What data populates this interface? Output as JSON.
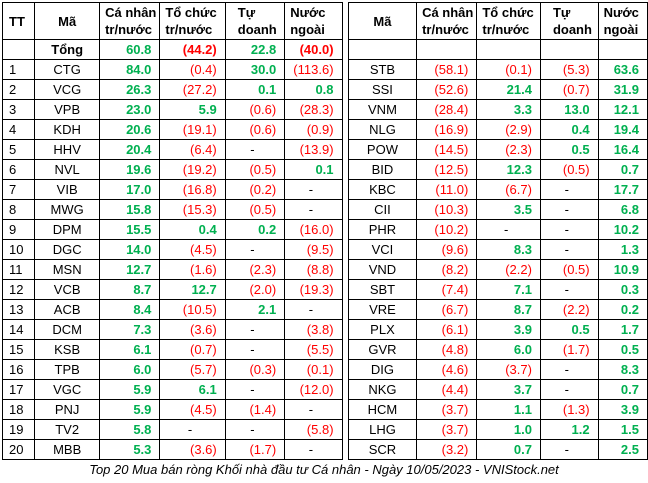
{
  "headers": {
    "tt": "TT",
    "ma": "Mã",
    "ca_nhan": [
      "Cá nhân",
      "tr/nước"
    ],
    "to_chuc": [
      "Tổ chức",
      "tr/nước"
    ],
    "tu_doanh": [
      "Tự",
      "doanh"
    ],
    "nuoc_ngoai": [
      "Nước",
      "ngoài"
    ]
  },
  "total": {
    "label": "Tổng",
    "ca_nhan": "60.8",
    "to_chuc": "(44.2)",
    "tu_doanh": "22.8",
    "nuoc_ngoai": "(40.0)"
  },
  "left_rows": [
    {
      "tt": "1",
      "ma": "CTG",
      "ca_nhan": "84.0",
      "to_chuc": "(0.4)",
      "tu_doanh": "30.0",
      "nuoc_ngoai": "(113.6)"
    },
    {
      "tt": "2",
      "ma": "VCG",
      "ca_nhan": "26.3",
      "to_chuc": "(27.2)",
      "tu_doanh": "0.1",
      "nuoc_ngoai": "0.8"
    },
    {
      "tt": "3",
      "ma": "VPB",
      "ca_nhan": "23.0",
      "to_chuc": "5.9",
      "tu_doanh": "(0.6)",
      "nuoc_ngoai": "(28.3)"
    },
    {
      "tt": "4",
      "ma": "KDH",
      "ca_nhan": "20.6",
      "to_chuc": "(19.1)",
      "tu_doanh": "(0.6)",
      "nuoc_ngoai": "(0.9)"
    },
    {
      "tt": "5",
      "ma": "HHV",
      "ca_nhan": "20.4",
      "to_chuc": "(6.4)",
      "tu_doanh": "-",
      "nuoc_ngoai": "(13.9)"
    },
    {
      "tt": "6",
      "ma": "NVL",
      "ca_nhan": "19.6",
      "to_chuc": "(19.2)",
      "tu_doanh": "(0.5)",
      "nuoc_ngoai": "0.1"
    },
    {
      "tt": "7",
      "ma": "VIB",
      "ca_nhan": "17.0",
      "to_chuc": "(16.8)",
      "tu_doanh": "(0.2)",
      "nuoc_ngoai": "-"
    },
    {
      "tt": "8",
      "ma": "MWG",
      "ca_nhan": "15.8",
      "to_chuc": "(15.3)",
      "tu_doanh": "(0.5)",
      "nuoc_ngoai": "-"
    },
    {
      "tt": "9",
      "ma": "DPM",
      "ca_nhan": "15.5",
      "to_chuc": "0.4",
      "tu_doanh": "0.2",
      "nuoc_ngoai": "(16.0)"
    },
    {
      "tt": "10",
      "ma": "DGC",
      "ca_nhan": "14.0",
      "to_chuc": "(4.5)",
      "tu_doanh": "-",
      "nuoc_ngoai": "(9.5)"
    },
    {
      "tt": "11",
      "ma": "MSN",
      "ca_nhan": "12.7",
      "to_chuc": "(1.6)",
      "tu_doanh": "(2.3)",
      "nuoc_ngoai": "(8.8)"
    },
    {
      "tt": "12",
      "ma": "VCB",
      "ca_nhan": "8.7",
      "to_chuc": "12.7",
      "tu_doanh": "(2.0)",
      "nuoc_ngoai": "(19.3)"
    },
    {
      "tt": "13",
      "ma": "ACB",
      "ca_nhan": "8.4",
      "to_chuc": "(10.5)",
      "tu_doanh": "2.1",
      "nuoc_ngoai": "-"
    },
    {
      "tt": "14",
      "ma": "DCM",
      "ca_nhan": "7.3",
      "to_chuc": "(3.6)",
      "tu_doanh": "-",
      "nuoc_ngoai": "(3.8)"
    },
    {
      "tt": "15",
      "ma": "KSB",
      "ca_nhan": "6.1",
      "to_chuc": "(0.7)",
      "tu_doanh": "-",
      "nuoc_ngoai": "(5.5)"
    },
    {
      "tt": "16",
      "ma": "TPB",
      "ca_nhan": "6.0",
      "to_chuc": "(5.7)",
      "tu_doanh": "(0.3)",
      "nuoc_ngoai": "(0.1)"
    },
    {
      "tt": "17",
      "ma": "VGC",
      "ca_nhan": "5.9",
      "to_chuc": "6.1",
      "tu_doanh": "-",
      "nuoc_ngoai": "(12.0)"
    },
    {
      "tt": "18",
      "ma": "PNJ",
      "ca_nhan": "5.9",
      "to_chuc": "(4.5)",
      "tu_doanh": "(1.4)",
      "nuoc_ngoai": "-"
    },
    {
      "tt": "19",
      "ma": "TV2",
      "ca_nhan": "5.8",
      "to_chuc": "-",
      "tu_doanh": "-",
      "nuoc_ngoai": "(5.8)"
    },
    {
      "tt": "20",
      "ma": "MBB",
      "ca_nhan": "5.3",
      "to_chuc": "(3.6)",
      "tu_doanh": "(1.7)",
      "nuoc_ngoai": "-"
    }
  ],
  "right_rows": [
    {
      "ma": "STB",
      "ca_nhan": "(58.1)",
      "to_chuc": "(0.1)",
      "tu_doanh": "(5.3)",
      "nuoc_ngoai": "63.6"
    },
    {
      "ma": "SSI",
      "ca_nhan": "(52.6)",
      "to_chuc": "21.4",
      "tu_doanh": "(0.7)",
      "nuoc_ngoai": "31.9"
    },
    {
      "ma": "VNM",
      "ca_nhan": "(28.4)",
      "to_chuc": "3.3",
      "tu_doanh": "13.0",
      "nuoc_ngoai": "12.1"
    },
    {
      "ma": "NLG",
      "ca_nhan": "(16.9)",
      "to_chuc": "(2.9)",
      "tu_doanh": "0.4",
      "nuoc_ngoai": "19.4"
    },
    {
      "ma": "POW",
      "ca_nhan": "(14.5)",
      "to_chuc": "(2.3)",
      "tu_doanh": "0.5",
      "nuoc_ngoai": "16.4"
    },
    {
      "ma": "BID",
      "ca_nhan": "(12.5)",
      "to_chuc": "12.3",
      "tu_doanh": "(0.5)",
      "nuoc_ngoai": "0.7"
    },
    {
      "ma": "KBC",
      "ca_nhan": "(11.0)",
      "to_chuc": "(6.7)",
      "tu_doanh": "-",
      "nuoc_ngoai": "17.7"
    },
    {
      "ma": "CII",
      "ca_nhan": "(10.3)",
      "to_chuc": "3.5",
      "tu_doanh": "-",
      "nuoc_ngoai": "6.8"
    },
    {
      "ma": "PHR",
      "ca_nhan": "(10.2)",
      "to_chuc": "-",
      "tu_doanh": "-",
      "nuoc_ngoai": "10.2"
    },
    {
      "ma": "VCI",
      "ca_nhan": "(9.6)",
      "to_chuc": "8.3",
      "tu_doanh": "-",
      "nuoc_ngoai": "1.3"
    },
    {
      "ma": "VND",
      "ca_nhan": "(8.2)",
      "to_chuc": "(2.2)",
      "tu_doanh": "(0.5)",
      "nuoc_ngoai": "10.9"
    },
    {
      "ma": "SBT",
      "ca_nhan": "(7.4)",
      "to_chuc": "7.1",
      "tu_doanh": "-",
      "nuoc_ngoai": "0.3"
    },
    {
      "ma": "VRE",
      "ca_nhan": "(6.7)",
      "to_chuc": "8.7",
      "tu_doanh": "(2.2)",
      "nuoc_ngoai": "0.2"
    },
    {
      "ma": "PLX",
      "ca_nhan": "(6.1)",
      "to_chuc": "3.9",
      "tu_doanh": "0.5",
      "nuoc_ngoai": "1.7"
    },
    {
      "ma": "GVR",
      "ca_nhan": "(4.8)",
      "to_chuc": "6.0",
      "tu_doanh": "(1.7)",
      "nuoc_ngoai": "0.5"
    },
    {
      "ma": "DIG",
      "ca_nhan": "(4.6)",
      "to_chuc": "(3.7)",
      "tu_doanh": "-",
      "nuoc_ngoai": "8.3"
    },
    {
      "ma": "NKG",
      "ca_nhan": "(4.4)",
      "to_chuc": "3.7",
      "tu_doanh": "-",
      "nuoc_ngoai": "0.7"
    },
    {
      "ma": "HCM",
      "ca_nhan": "(3.7)",
      "to_chuc": "1.1",
      "tu_doanh": "(1.3)",
      "nuoc_ngoai": "3.9"
    },
    {
      "ma": "LHG",
      "ca_nhan": "(3.7)",
      "to_chuc": "1.0",
      "tu_doanh": "1.2",
      "nuoc_ngoai": "1.5"
    },
    {
      "ma": "SCR",
      "ca_nhan": "(3.2)",
      "to_chuc": "0.7",
      "tu_doanh": "-",
      "nuoc_ngoai": "2.5"
    }
  ],
  "caption": "Top 20 Mua bán ròng Khối nhà đầu tư Cá nhân - Ngày 10/05/2023 - VNIStock.net",
  "colors": {
    "positive": "#00b050",
    "negative": "#ff0000"
  }
}
